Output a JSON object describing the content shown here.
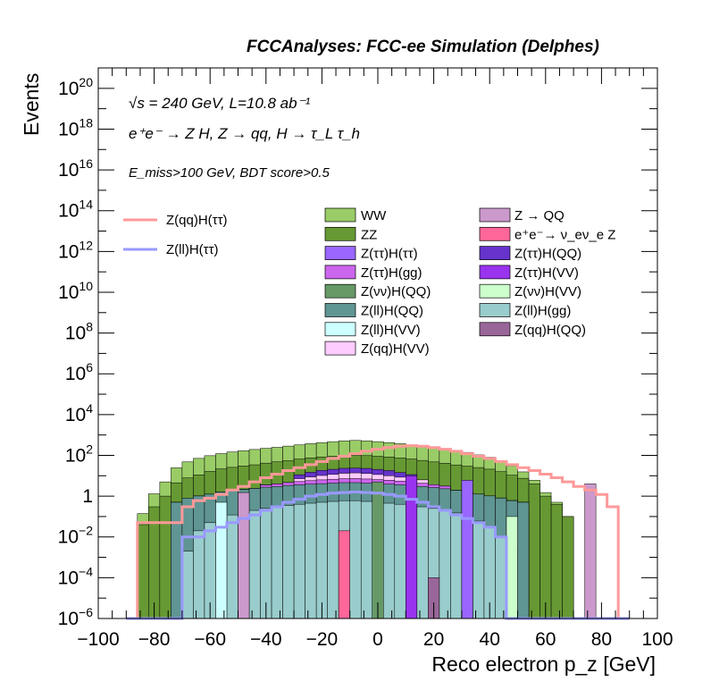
{
  "header": {
    "banner": "FCCAnalyses: FCC-ee Simulation (Delphes)"
  },
  "annotations": {
    "energy_line": "√s = 240 GeV, L=10.8 ab⁻¹",
    "process_line": "e⁺e⁻ → Z H, Z → qq, H → τ_L τ_h",
    "cut_line": "E_miss>100 GeV, BDT score>0.5"
  },
  "chart_data": {
    "type": "bar",
    "stacked": true,
    "log_y": true,
    "xlabel": "Reco electron p_z [GeV]",
    "ylabel": "Events",
    "xlim": [
      -100,
      100
    ],
    "ylim": [
      1e-06,
      1e+21
    ],
    "bin_width": 4,
    "x_tick_labels": [
      "−100",
      "−80",
      "−60",
      "−40",
      "−20",
      "0",
      "20",
      "40",
      "60",
      "80",
      "100"
    ],
    "y_tick_labels": [
      {
        "base": "10",
        "exp": "−6",
        "value": 1e-06
      },
      {
        "base": "10",
        "exp": "−4",
        "value": 0.0001
      },
      {
        "base": "10",
        "exp": "−2",
        "value": 0.01
      },
      {
        "base": "1",
        "exp": "",
        "value": 1
      },
      {
        "base": "10",
        "exp": "2",
        "value": 100.0
      },
      {
        "base": "10",
        "exp": "4",
        "value": 10000.0
      },
      {
        "base": "10",
        "exp": "6",
        "value": 1000000.0
      },
      {
        "base": "10",
        "exp": "8",
        "value": 100000000.0
      },
      {
        "base": "10",
        "exp": "10",
        "value": 10000000000.0
      },
      {
        "base": "10",
        "exp": "12",
        "value": 1000000000000.0
      },
      {
        "base": "10",
        "exp": "14",
        "value": 100000000000000.0
      },
      {
        "base": "10",
        "exp": "16",
        "value": 1e+16
      },
      {
        "base": "10",
        "exp": "18",
        "value": 1e+18
      },
      {
        "base": "10",
        "exp": "20",
        "value": 1e+20
      }
    ],
    "stack_levels": [
      {
        "name": "Z(ll)H(gg)",
        "color": "#99cccc",
        "edges": [
          -90,
          90
        ],
        "values": [
          0,
          0,
          0,
          0,
          0,
          0.002,
          0.02,
          0.05,
          0.1,
          0.12,
          0.15,
          0.2,
          0.25,
          0.3,
          0.35,
          0.4,
          0.45,
          0.5,
          0.55,
          0.6,
          0.6,
          0.55,
          0.5,
          0.45,
          0.4,
          0.35,
          0.3,
          0.25,
          0.2,
          0.15,
          0.1,
          0.06,
          0.03,
          0.01,
          0.003,
          0,
          0,
          0,
          0,
          0,
          0,
          0,
          0,
          0,
          0
        ]
      },
      {
        "name": "Z(ll)H(QQ)",
        "color": "#5f9593",
        "values": [
          0,
          0,
          0,
          0,
          0.5,
          0.8,
          1.0,
          1.2,
          1.5,
          1.7,
          2.0,
          2.2,
          2.5,
          2.7,
          3.0,
          3.2,
          3.4,
          3.6,
          3.8,
          4.0,
          4.0,
          3.8,
          3.6,
          3.4,
          3.2,
          3.0,
          2.7,
          2.4,
          2.1,
          1.8,
          1.5,
          1.2,
          1.0,
          0.8,
          0.6,
          0.5,
          0,
          0,
          0,
          0,
          0,
          0,
          0,
          0,
          0
        ]
      },
      {
        "name": "Z(ττ)H(gg)",
        "color": "#cc66ee",
        "values": [
          0,
          0,
          0,
          0,
          0,
          0,
          0,
          0,
          0,
          0,
          0,
          0,
          0.8,
          1.0,
          1.3,
          1.6,
          1.9,
          2.2,
          2.4,
          2.6,
          2.7,
          2.6,
          2.4,
          2.2,
          1.9,
          1.6,
          1.3,
          1.0,
          0.8,
          0,
          0,
          0,
          0,
          0,
          0,
          0,
          0,
          0,
          0,
          0,
          0,
          0,
          0,
          0,
          0
        ]
      },
      {
        "name": "Z(qq)H(VV)",
        "color": "#ffccff",
        "values": [
          0,
          0,
          0,
          0,
          0,
          0,
          0,
          0,
          0,
          0,
          0,
          0,
          0,
          0,
          0,
          2.0,
          3.0,
          4.0,
          5.0,
          6.0,
          6.5,
          6.0,
          5.0,
          4.0,
          3.0,
          2.5,
          2.0,
          0,
          0,
          0,
          0,
          0,
          0,
          0,
          0,
          0,
          0,
          0,
          0,
          0,
          0,
          0,
          0,
          0,
          0
        ]
      },
      {
        "name": "Z(ττ)H(QQ)",
        "color": "#6633cc",
        "values": [
          0,
          0,
          0,
          0,
          0,
          0,
          0,
          0,
          0,
          0,
          0,
          0,
          0,
          0,
          0,
          4,
          6,
          8,
          9,
          10,
          10,
          10,
          9,
          8,
          6,
          4,
          0,
          0,
          0,
          0,
          0,
          0,
          0,
          0,
          0,
          0,
          0,
          0,
          0,
          0,
          0,
          0,
          0,
          0,
          0
        ]
      },
      {
        "name": "ZZ",
        "color": "#669933",
        "values": [
          0,
          0.04,
          0.3,
          1.0,
          4.0,
          7.0,
          10,
          15,
          20,
          24,
          28,
          32,
          38,
          44,
          50,
          55,
          60,
          65,
          70,
          74,
          76,
          74,
          70,
          65,
          60,
          55,
          50,
          44,
          38,
          32,
          28,
          24,
          20,
          15,
          10,
          7,
          4,
          1.0,
          0.4,
          0.1,
          0,
          0,
          0,
          0,
          0
        ]
      },
      {
        "name": "WW",
        "color": "#99cc66",
        "values": [
          0,
          0.1,
          1.0,
          4.0,
          20,
          40,
          60,
          80,
          100,
          120,
          140,
          160,
          180,
          200,
          230,
          260,
          300,
          340,
          380,
          420,
          440,
          420,
          380,
          340,
          300,
          260,
          230,
          200,
          170,
          140,
          110,
          80,
          60,
          40,
          20,
          8,
          2,
          0.5,
          0.1,
          0,
          0,
          0,
          0,
          0,
          0
        ]
      }
    ],
    "spikes": [
      {
        "name": "Z(qq)H(QQ)",
        "color": "#996699",
        "x": 18,
        "value": 0.0001
      },
      {
        "name": "e⁺e⁻ → ν_eν_e Z",
        "color": "#ff6699",
        "x": -14,
        "value": 0.02
      },
      {
        "name": "Z(νν)H(QQ)",
        "color": "#669966",
        "x": -2,
        "value": 5
      },
      {
        "name": "Z(νν)H(VV)",
        "color": "#ccffcc",
        "x": 46,
        "value": 0.1
      },
      {
        "name": "Z(ll)H(VV)",
        "color": "#ccffff",
        "x": -58,
        "value": 0.5
      },
      {
        "name": "Z → QQ",
        "color": "#cc99cc",
        "x": -50,
        "value": 1.5
      },
      {
        "name": "Z → QQ",
        "color": "#cc99cc",
        "x": 74,
        "value": 4
      },
      {
        "name": "Z(ττ)H(ττ)",
        "color": "#9966ff",
        "x": 30,
        "value": 6
      },
      {
        "name": "Z(ττ)H(VV)",
        "color": "#9933ee",
        "x": 10,
        "value": 10
      }
    ],
    "lines": [
      {
        "name": "Z(qq)H(ττ)",
        "color": "#ff9999",
        "values": [
          0,
          0.05,
          0.05,
          0.05,
          0.05,
          0.3,
          0.6,
          0.8,
          1.2,
          2.0,
          3.0,
          5.0,
          8.0,
          12,
          18,
          25,
          35,
          50,
          70,
          90,
          120,
          160,
          200,
          240,
          280,
          300,
          280,
          240,
          200,
          160,
          120,
          90,
          70,
          50,
          35,
          25,
          18,
          12,
          8,
          5,
          3,
          2,
          1.2,
          0.3,
          0
        ]
      },
      {
        "name": "Z(ll)H(ττ)",
        "color": "#9999ff",
        "values": [
          0,
          0,
          0,
          0,
          0,
          0.01,
          0.01,
          0.02,
          0.03,
          0.05,
          0.08,
          0.12,
          0.2,
          0.3,
          0.5,
          0.7,
          1.0,
          1.2,
          1.4,
          1.5,
          1.6,
          1.5,
          1.4,
          1.2,
          1.0,
          0.7,
          0.5,
          0.3,
          0.2,
          0.12,
          0.08,
          0.05,
          0.03,
          0.01,
          0,
          0,
          0,
          0,
          0,
          0,
          0,
          0,
          0,
          0,
          0
        ]
      }
    ],
    "legend": {
      "lines_column": [
        "Z(qq)H(ττ)",
        "Z(ll)H(ττ)"
      ],
      "col1": [
        {
          "label": "WW",
          "color": "#99cc66"
        },
        {
          "label": "ZZ",
          "color": "#669933"
        },
        {
          "label": "Z(ττ)H(ττ)",
          "color": "#9966ff"
        },
        {
          "label": "Z(ττ)H(gg)",
          "color": "#cc66ee"
        },
        {
          "label": "Z(νν)H(QQ)",
          "color": "#669966"
        },
        {
          "label": "Z(ll)H(QQ)",
          "color": "#5f9593"
        },
        {
          "label": "Z(ll)H(VV)",
          "color": "#ccffff"
        },
        {
          "label": "Z(qq)H(VV)",
          "color": "#ffccff"
        }
      ],
      "col2": [
        {
          "label": "Z → QQ",
          "color": "#cc99cc"
        },
        {
          "label": "e⁺e⁻→ ν_eν_e Z",
          "color": "#ff6699"
        },
        {
          "label": "Z(ττ)H(QQ)",
          "color": "#6633cc"
        },
        {
          "label": "Z(ττ)H(VV)",
          "color": "#9933ee"
        },
        {
          "label": "Z(νν)H(VV)",
          "color": "#ccffcc"
        },
        {
          "label": "Z(ll)H(gg)",
          "color": "#99cccc"
        },
        {
          "label": "Z(qq)H(QQ)",
          "color": "#996699"
        }
      ]
    }
  }
}
